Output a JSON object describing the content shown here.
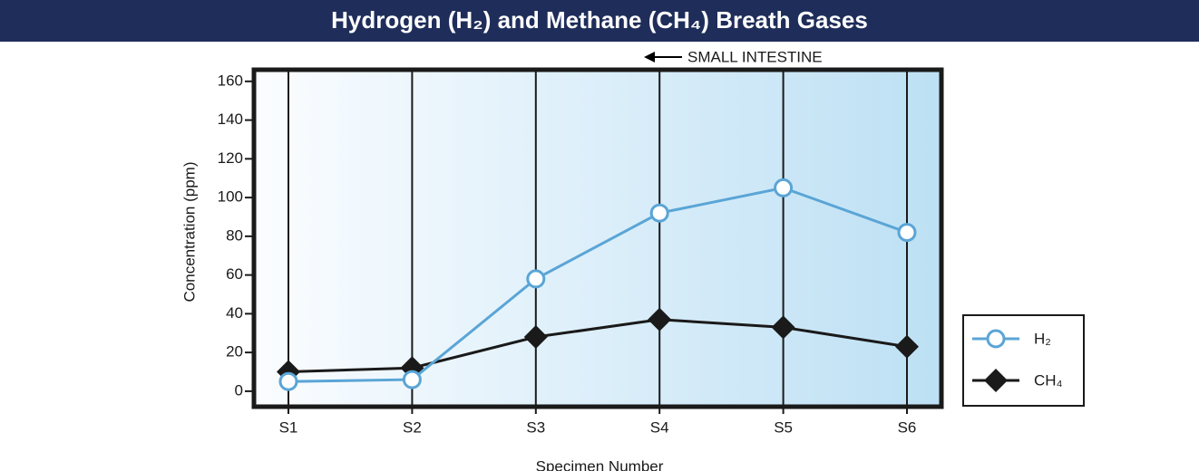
{
  "chart_data": {
    "type": "line",
    "title": "Hydrogen (H₂) and Methane (CH₄) Breath Gases",
    "annotation": "SMALL INTESTINE",
    "x_label": "Specimen Number",
    "y_label": "Concentration (ppm)",
    "categories": [
      "S1",
      "S2",
      "S3",
      "S4",
      "S5",
      "S6"
    ],
    "series": [
      {
        "name": "H₂",
        "color": "#5aa5d6",
        "marker": "circle",
        "values": [
          5,
          6,
          58,
          92,
          105,
          82
        ]
      },
      {
        "name": "CH₄",
        "color": "#1a1a1a",
        "marker": "diamond",
        "values": [
          10,
          12,
          28,
          37,
          33,
          23
        ]
      }
    ],
    "ylim": [
      -8,
      166
    ],
    "yticks": [
      0,
      20,
      40,
      60,
      80,
      100,
      120,
      140,
      160
    ],
    "legend": "right"
  }
}
